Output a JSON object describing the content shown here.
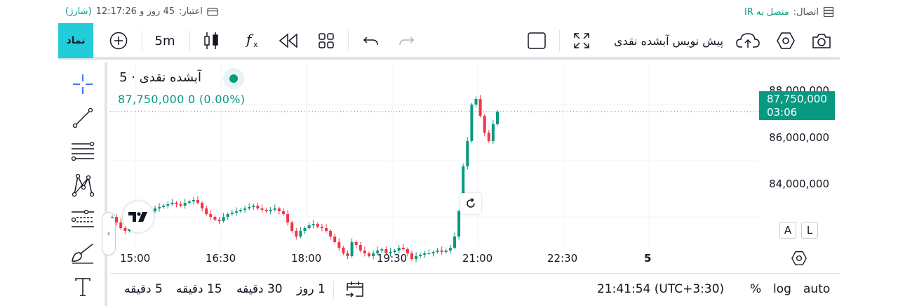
{
  "status": {
    "connection_label": "اتصال:",
    "connection_value": "متصل به IR",
    "credit_label": "اعتبار:",
    "credit_value": "45 روز و 12:17:26",
    "charge_link": "(شارژ)"
  },
  "toolbar": {
    "symbol_button": "نماد",
    "interval": "5m",
    "symbol_name": "پیش نویس آبشده نقدی"
  },
  "legend": {
    "title": "آبشده نقدی · 5",
    "price": "87,750,000",
    "change": "0 (0.00%)"
  },
  "price_axis": {
    "labels": [
      "88,000,000",
      "86,000,000",
      "84,000,000"
    ],
    "last_price": "87,750,000",
    "countdown": "03:06"
  },
  "time_axis": {
    "labels": [
      "15:00",
      "16:30",
      "18:00",
      "19:30",
      "21:00",
      "22:30",
      "5"
    ]
  },
  "scale_buttons": {
    "auto_label": "A",
    "log_label": "L"
  },
  "bottom": {
    "ranges": [
      "5 دقیقه",
      "15 دقیقه",
      "30 دقیقه",
      "1 روز"
    ],
    "clock": "21:41:54 (UTC+3:30)",
    "percent": "%",
    "log": "log",
    "auto": "auto"
  },
  "colors": {
    "up": "#089981",
    "down": "#f23645",
    "accent": "#22ccd9"
  },
  "chart_data": {
    "type": "candlestick",
    "x_labels": [
      "15:00",
      "16:30",
      "18:00",
      "19:30",
      "21:00",
      "22:30"
    ],
    "ylim": [
      82500000,
      89000000
    ],
    "last_price": 87750000,
    "closes": [
      84000000,
      83800000,
      83600000,
      83500000,
      83700000,
      83900000,
      83800000,
      84000000,
      84100000,
      84200000,
      84300000,
      84350000,
      84400000,
      84450000,
      84500000,
      84450000,
      84400000,
      84500000,
      84550000,
      84600000,
      84500000,
      84300000,
      84100000,
      84000000,
      83900000,
      83850000,
      84000000,
      84100000,
      84150000,
      84200000,
      84250000,
      84300000,
      84350000,
      84400000,
      84300000,
      84250000,
      84200000,
      84250000,
      84300000,
      84200000,
      84100000,
      83800000,
      83500000,
      83300000,
      83500000,
      83600000,
      83700000,
      83750000,
      83650000,
      83600000,
      83500000,
      83300000,
      83100000,
      82900000,
      82700000,
      82600000,
      83100000,
      83000000,
      82800000,
      82700000,
      82600000,
      82700000,
      82800000,
      82850000,
      82700000,
      82750000,
      82800000,
      82900000,
      82850000,
      82700000,
      82500000,
      82600000,
      82650000,
      82700000,
      82700000,
      82750000,
      82800000,
      82750000,
      82800000,
      82900000,
      83300000,
      84200000,
      85800000,
      86700000,
      88000000,
      88200000,
      87600000,
      87000000,
      86700000,
      87300000,
      87750000
    ]
  }
}
